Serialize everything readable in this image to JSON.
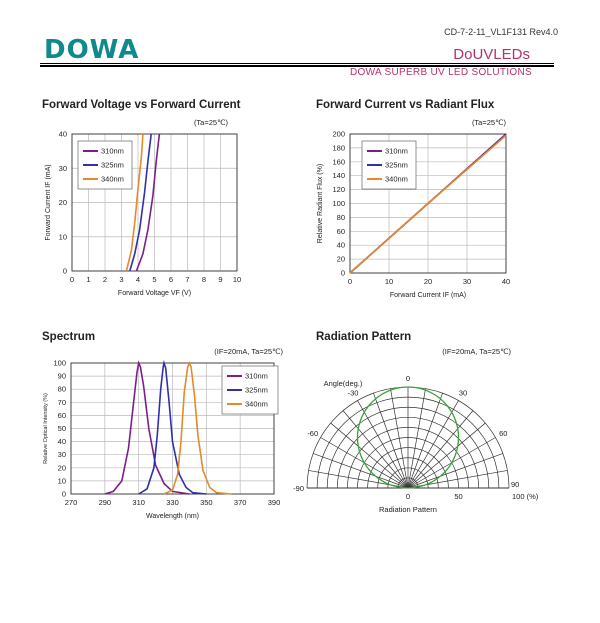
{
  "header": {
    "doc_id": "CD-7-2-11_VL1F131 Rev4.0",
    "logo": "DOWA",
    "product": "DoUVLEDs",
    "tagline": "DOWA  SUPERB UV LED SOLUTIONS"
  },
  "colors": {
    "brand_teal": "#0f8a8c",
    "accent_magenta": "#b4336b",
    "s310": "#7b1e8c",
    "s325": "#2f2fb0",
    "s340": "#e38a2a",
    "pattern_green": "#3aa23a"
  },
  "chart_data": [
    {
      "id": "iv",
      "type": "line",
      "title": "Forward Voltage vs Forward Current",
      "condition": "(Ta=25℃)",
      "xlabel": "Forward Voltage VF (V)",
      "ylabel": "Forward Current IF (mA)",
      "xlim": [
        0,
        10
      ],
      "ylim": [
        0,
        40
      ],
      "xticks": [
        "0",
        "1",
        "2",
        "3",
        "4",
        "5",
        "6",
        "7",
        "8",
        "9",
        "10"
      ],
      "yticks": [
        "0",
        "10",
        "20",
        "30",
        "40"
      ],
      "grid": true,
      "legend": "top-left",
      "series": [
        {
          "name": "310nm",
          "x": [
            3.9,
            4.3,
            4.6,
            4.9,
            5.1,
            5.3
          ],
          "y": [
            0,
            5,
            12,
            22,
            32,
            40
          ]
        },
        {
          "name": "325nm",
          "x": [
            3.5,
            3.8,
            4.1,
            4.4,
            4.6,
            4.8
          ],
          "y": [
            0,
            5,
            12,
            23,
            32,
            40
          ]
        },
        {
          "name": "340nm",
          "x": [
            3.3,
            3.6,
            3.8,
            4.0,
            4.2,
            4.3
          ],
          "y": [
            0,
            6,
            14,
            24,
            33,
            40
          ]
        }
      ]
    },
    {
      "id": "flux",
      "type": "line",
      "title": "Forward Current vs Radiant Flux",
      "condition": "(Ta=25℃)",
      "xlabel": "Forward Current IF (mA)",
      "ylabel": "Relative Radiant Flux (%)",
      "xlim": [
        0,
        40
      ],
      "ylim": [
        0,
        200
      ],
      "xticks": [
        "0",
        "10",
        "20",
        "30",
        "40"
      ],
      "yticks": [
        "0",
        "20",
        "40",
        "60",
        "80",
        "100",
        "120",
        "140",
        "160",
        "180",
        "200"
      ],
      "grid": true,
      "legend": "top-left",
      "series": [
        {
          "name": "310nm",
          "x": [
            0,
            20,
            40
          ],
          "y": [
            0,
            100,
            200
          ]
        },
        {
          "name": "325nm",
          "x": [
            0,
            20,
            40
          ],
          "y": [
            0,
            100,
            199
          ]
        },
        {
          "name": "340nm",
          "x": [
            0,
            20,
            40
          ],
          "y": [
            0,
            100,
            198
          ]
        }
      ]
    },
    {
      "id": "spec",
      "type": "line",
      "title": "Spectrum",
      "condition": "(IF=20mA, Ta=25℃)",
      "xlabel": "Wavelength (nm)",
      "ylabel": "Relative Optical Intensity (%)",
      "xlim": [
        270,
        390
      ],
      "ylim": [
        0,
        100
      ],
      "xticks": [
        "270",
        "290",
        "310",
        "330",
        "350",
        "370",
        "390"
      ],
      "yticks": [
        "0",
        "10",
        "20",
        "30",
        "40",
        "50",
        "60",
        "70",
        "80",
        "90",
        "100"
      ],
      "grid": true,
      "legend": "top-right",
      "series": [
        {
          "name": "310nm",
          "x": [
            290,
            295,
            300,
            304,
            307,
            309,
            310,
            311,
            313,
            316,
            320,
            325,
            330,
            340
          ],
          "y": [
            0,
            2,
            10,
            35,
            70,
            93,
            100,
            97,
            82,
            50,
            22,
            8,
            2,
            0
          ]
        },
        {
          "name": "325nm",
          "x": [
            310,
            315,
            319,
            321,
            323,
            324.5,
            325,
            326,
            328,
            330,
            334,
            338,
            342,
            350
          ],
          "y": [
            0,
            4,
            20,
            45,
            80,
            97,
            100,
            96,
            70,
            40,
            15,
            5,
            1,
            0
          ]
        },
        {
          "name": "340nm",
          "x": [
            325,
            330,
            333,
            335,
            337,
            339,
            340,
            341,
            343,
            345,
            348,
            352,
            356,
            365
          ],
          "y": [
            0,
            3,
            15,
            40,
            78,
            97,
            100,
            97,
            75,
            45,
            18,
            5,
            1,
            0
          ]
        }
      ]
    },
    {
      "id": "rad",
      "type": "polar",
      "title": "Radiation Pattern",
      "condition": "(IF=20mA, Ta=25℃)",
      "xlabel": "Radiation Pattern",
      "angle_label": "Angle(deg.)",
      "angle_ticks": [
        "-90",
        "-60",
        "-30",
        "0",
        "30",
        "60",
        "90"
      ],
      "radius_ticks": [
        "0",
        "50",
        "100 (%)"
      ],
      "rlim": [
        0,
        100
      ],
      "series": [
        {
          "name": "pattern",
          "shape": "circle",
          "diameter": 100
        }
      ]
    }
  ]
}
